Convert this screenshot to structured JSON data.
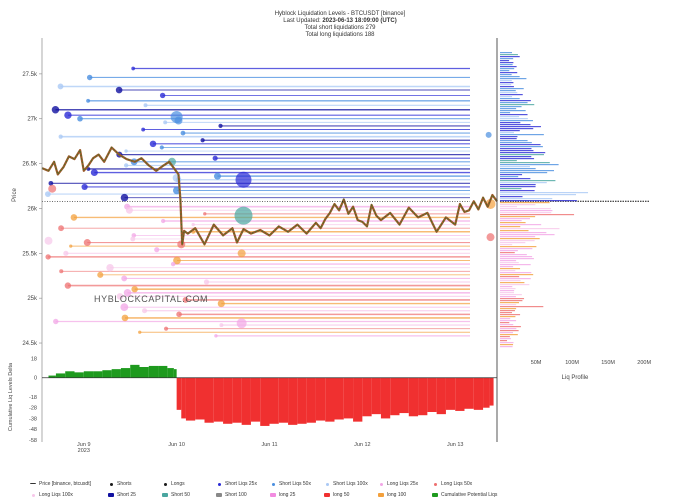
{
  "title": {
    "line1": "Hyblock Liquidation Levels - BTCUSDT [binance]",
    "line2_prefix": "Last Updated: ",
    "line2_value": "2023-06-13 18:09:00 (UTC)",
    "line3": "Total short liquidations 279",
    "line4": "Total long liquidations 188"
  },
  "watermark": "HYBLOCKCAPITAL.COM",
  "colors": {
    "short100": "#aac9f5",
    "short50": "#4a8fe0",
    "short25": "#2a2ad6",
    "shortCore": "#1010a0",
    "long100": "#f7c7ea",
    "long50": "#ee6f6f",
    "long25": "#f2a6e6",
    "longCore": "#f3a03c",
    "teal": "#4aa6a0",
    "green": "#1e9a1e",
    "red": "#f03030",
    "orange": "#f3a03c",
    "gray": "#888888"
  },
  "chart_data": [
    {
      "type": "line",
      "title": "",
      "ylabel": "Price",
      "y_ticks": [
        "27.5k",
        "27k",
        "26.5k",
        "26k",
        "25.5k",
        "25k",
        "24.5k"
      ],
      "y_tick_values": [
        27500,
        27000,
        26500,
        26000,
        25500,
        25000,
        24500
      ],
      "ylim": [
        24400,
        27900
      ],
      "x_ticks": [
        "Jun 9\n2023",
        "Jun 10",
        "Jun 11",
        "Jun 12",
        "Jun 13"
      ],
      "x_tick_days": [
        1,
        2,
        3,
        4,
        5
      ],
      "xlim": [
        0.55,
        5.45
      ],
      "current_price": 26080,
      "series": [
        {
          "name": "Price [binance, btcusdt]",
          "x": [
            0.55,
            0.62,
            0.68,
            0.72,
            0.78,
            0.84,
            0.9,
            0.96,
            1.0,
            1.05,
            1.1,
            1.16,
            1.22,
            1.3,
            1.38,
            1.46,
            1.55,
            1.62,
            1.7,
            1.78,
            1.86,
            1.92,
            1.97,
            2.02,
            2.04,
            2.06,
            2.08,
            2.12,
            2.2,
            2.3,
            2.4,
            2.5,
            2.6,
            2.65,
            2.72,
            2.8,
            2.9,
            3.0,
            3.1,
            3.2,
            3.3,
            3.4,
            3.5,
            3.55,
            3.6,
            3.65,
            3.7,
            3.75,
            3.8,
            3.85,
            3.9,
            3.95,
            4.0,
            4.05,
            4.1,
            4.15,
            4.2,
            4.3,
            4.4,
            4.5,
            4.6,
            4.7,
            4.8,
            4.9,
            5.0,
            5.05,
            5.1,
            5.15,
            5.2,
            5.25,
            5.3,
            5.35,
            5.4,
            5.45
          ],
          "values": [
            26450,
            26420,
            26520,
            26380,
            26460,
            26580,
            26550,
            26650,
            26420,
            26480,
            26560,
            26600,
            26520,
            26680,
            26600,
            26550,
            26520,
            26560,
            26480,
            26420,
            26480,
            26520,
            26450,
            26380,
            26100,
            25600,
            25750,
            25720,
            25780,
            25600,
            25820,
            25700,
            25780,
            25620,
            25770,
            25720,
            25760,
            25700,
            25800,
            25740,
            25820,
            25720,
            25840,
            25780,
            25880,
            25950,
            26050,
            25980,
            26100,
            25940,
            26020,
            25870,
            25850,
            25800,
            26040,
            25920,
            25870,
            25950,
            25820,
            26010,
            25900,
            25950,
            25740,
            25900,
            25820,
            26050,
            25960,
            25980,
            26080,
            25990,
            26120,
            26020,
            26150,
            26080
          ]
        }
      ],
      "short_levels": [
        27560,
        27460,
        27360,
        27320,
        27260,
        27200,
        27150,
        27100,
        27040,
        27000,
        26960,
        26920,
        26880,
        26840,
        26800,
        26760,
        26720,
        26680,
        26640,
        26600,
        26560,
        26520,
        26480,
        26440,
        26400,
        26360,
        26320,
        26280,
        26240,
        26200,
        26160,
        26120
      ],
      "long_levels": [
        26020,
        25980,
        25940,
        25900,
        25860,
        25820,
        25780,
        25740,
        25700,
        25660,
        25620,
        25580,
        25540,
        25500,
        25460,
        25420,
        25380,
        25340,
        25300,
        25260,
        25220,
        25180,
        25140,
        25100,
        25060,
        25020,
        24980,
        24940,
        24900,
        24860,
        24820,
        24780,
        24740,
        24700,
        24660,
        24620,
        24580
      ]
    },
    {
      "type": "area",
      "ylabel": "Cumulative Liq Levels Delta",
      "y_ticks": [
        "18",
        "0",
        "-18",
        "-28",
        "-38",
        "-48",
        "-58"
      ],
      "y_tick_values": [
        18,
        0,
        -18,
        -28,
        -38,
        -48,
        -58
      ],
      "ylim": [
        -60,
        24
      ],
      "xlim": [
        0.55,
        5.45
      ],
      "series": [
        {
          "name": "Cumulative Potential Liqs",
          "x": [
            0.62,
            0.7,
            0.8,
            0.9,
            1.0,
            1.1,
            1.2,
            1.3,
            1.4,
            1.5,
            1.6,
            1.7,
            1.8,
            1.9,
            1.97,
            2.0,
            2.05,
            2.1,
            2.2,
            2.3,
            2.4,
            2.5,
            2.6,
            2.7,
            2.8,
            2.9,
            3.0,
            3.1,
            3.2,
            3.3,
            3.4,
            3.5,
            3.6,
            3.7,
            3.8,
            3.9,
            4.0,
            4.1,
            4.2,
            4.3,
            4.4,
            4.5,
            4.6,
            4.7,
            4.8,
            4.9,
            5.0,
            5.1,
            5.2,
            5.3,
            5.37
          ],
          "values": [
            2,
            4,
            6,
            5,
            6,
            6,
            7,
            8,
            9,
            12,
            10,
            11,
            11,
            9,
            8,
            -30,
            -38,
            -40,
            -39,
            -42,
            -41,
            -43,
            -42,
            -44,
            -41,
            -45,
            -43,
            -42,
            -44,
            -43,
            -42,
            -40,
            -41,
            -39,
            -38,
            -41,
            -36,
            -34,
            -38,
            -35,
            -33,
            -36,
            -35,
            -32,
            -34,
            -30,
            -31,
            -29,
            -30,
            -28,
            -26
          ]
        }
      ]
    },
    {
      "type": "bar",
      "xlabel": "Liq Profile",
      "x_ticks": [
        "0",
        "50M",
        "100M",
        "150M",
        "200M"
      ],
      "x_tick_values": [
        0,
        50,
        100,
        150,
        200
      ],
      "xlim": [
        0,
        215
      ]
    }
  ],
  "legend": {
    "row1": [
      {
        "label": "Price [binance, btcusdt]",
        "color": "#333333",
        "kind": "line"
      },
      {
        "label": "Shorts",
        "color": "#1a1a1a",
        "kind": "dot"
      },
      {
        "label": "Longs",
        "color": "#1a1a1a",
        "kind": "dot"
      },
      {
        "label": "Short Liqs 25x",
        "color": "#2a2ad6",
        "kind": "dot"
      },
      {
        "label": "Short Liqs 50x",
        "color": "#4a8fe0",
        "kind": "dot"
      },
      {
        "label": "Short Liqs 100x",
        "color": "#aac9f5",
        "kind": "dot"
      },
      {
        "label": "Long Liqs 25x",
        "color": "#f2a6e6",
        "kind": "dot"
      },
      {
        "label": "Long Liqs 50x",
        "color": "#ee6f6f",
        "kind": "dot"
      }
    ],
    "row2": [
      {
        "label": "Long Liqs 100x",
        "color": "#f7c7ea",
        "kind": "dot"
      },
      {
        "label": "Short 25",
        "color": "#1010a0",
        "kind": "box"
      },
      {
        "label": "Short 50",
        "color": "#4aa6a0",
        "kind": "box"
      },
      {
        "label": "Short 100",
        "color": "#888888",
        "kind": "box"
      },
      {
        "label": "long 25",
        "color": "#f28be0",
        "kind": "box"
      },
      {
        "label": "long 50",
        "color": "#f03030",
        "kind": "box"
      },
      {
        "label": "long 100",
        "color": "#f3a03c",
        "kind": "box"
      },
      {
        "label": "Cumulative Potential Liqs",
        "color": "#1e9a1e",
        "kind": "box"
      }
    ]
  }
}
